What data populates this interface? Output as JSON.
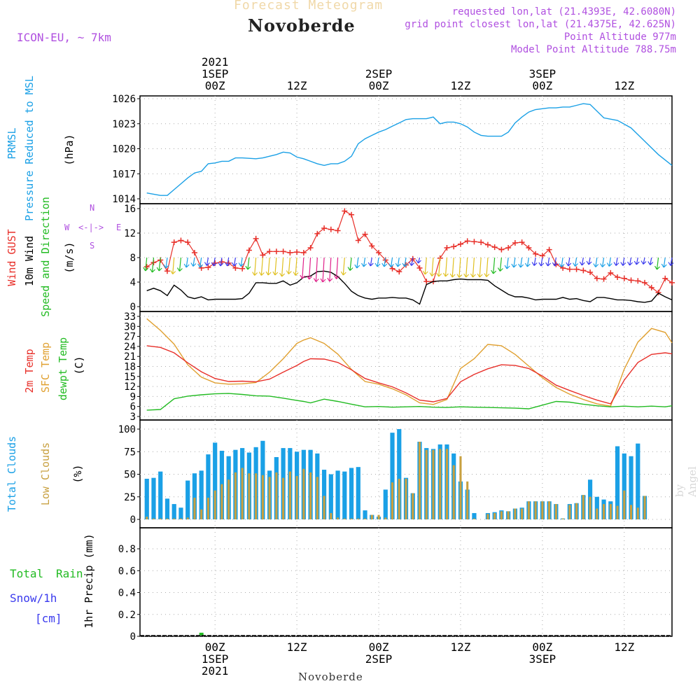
{
  "header": {
    "subtitle": "Forecast Meteogram",
    "title": "Novoberde",
    "model": "ICON-EU, ~ 7km",
    "req": "requested lon,lat (21.4393E, 42.6080N)",
    "grid": "grid point closest lon,lat (21.4375E, 42.625N)",
    "alt": "Point Altitude 977m",
    "model_alt": "Model Point Altitude 788.75m",
    "watermark": "by Angel",
    "footer": "Novoberde"
  },
  "colors": {
    "pressure": "#1aa0e6",
    "gust": "#e8302a",
    "wind": "#000000",
    "dir_label": "#22bb22",
    "t2m": "#e8302a",
    "sfc": "#e0a030",
    "dew": "#22bb22",
    "total_clouds": "#1aa0e6",
    "low_clouds": "#c8a040",
    "snow": "#3a3aee",
    "compass": "#b050e0"
  },
  "compass": {
    "west": "W",
    "east": "E",
    "north": "N",
    "south": "S",
    "arrow": "<-|->"
  },
  "chart_data": [
    {
      "type": "line",
      "panel": "pressure",
      "ylabels": [
        "PRMSL",
        "Pressure Reduced to MSL",
        "(hPa)"
      ],
      "y_ticks": [
        "1026",
        "1023",
        "1020",
        "1017",
        "1014"
      ],
      "ylim": [
        1013.5,
        1026.5
      ],
      "x_hours": [
        0,
        2,
        3,
        4,
        6,
        7,
        8,
        9,
        10,
        11,
        12,
        13,
        14,
        16,
        17,
        18,
        19,
        20,
        21,
        22,
        23,
        24,
        25,
        26,
        27,
        28,
        29,
        30,
        31,
        32,
        33,
        34,
        35,
        36,
        37,
        38,
        39,
        40,
        41,
        42,
        43,
        44,
        45,
        46,
        47,
        48,
        49,
        50,
        51,
        52,
        53,
        54,
        55,
        56,
        57,
        58,
        59,
        60,
        61,
        62,
        63,
        64,
        65,
        67,
        69,
        71,
        73,
        75,
        77
      ],
      "series": [
        {
          "values": [
            1014.7,
            1014.4,
            1014.4,
            1015.1,
            1016.5,
            1017.1,
            1017.3,
            1018.2,
            1018.3,
            1018.5,
            1018.5,
            1018.9,
            1018.9,
            1018.8,
            1018.9,
            1019.1,
            1019.3,
            1019.6,
            1019.5,
            1019.0,
            1018.8,
            1018.5,
            1018.2,
            1018.0,
            1018.2,
            1018.2,
            1018.5,
            1019.1,
            1020.6,
            1021.2,
            1021.6,
            1022.0,
            1022.3,
            1022.7,
            1023.1,
            1023.5,
            1023.6,
            1023.6,
            1023.6,
            1023.8,
            1023.0,
            1023.2,
            1023.2,
            1023.0,
            1022.6,
            1022.0,
            1021.6,
            1021.5,
            1021.5,
            1021.5,
            1022.0,
            1023.1,
            1023.8,
            1024.4,
            1024.7,
            1024.8,
            1024.9,
            1024.9,
            1025.0,
            1025.0,
            1025.2,
            1025.4,
            1025.3,
            1023.7,
            1023.4,
            1022.5,
            1020.9,
            1019.3,
            1018.0
          ]
        }
      ]
    },
    {
      "type": "line",
      "panel": "wind",
      "ylabels": [
        "Wind GUST",
        "10m Wind",
        "Speed and Direction",
        "(m/s)"
      ],
      "y_ticks": [
        "16",
        "12",
        "8",
        "4",
        "0"
      ],
      "ylim": [
        0,
        16.5
      ],
      "x_hours": [
        0,
        1,
        2,
        3,
        4,
        5,
        6,
        7,
        8,
        9,
        10,
        11,
        12,
        13,
        14,
        15,
        16,
        17,
        18,
        19,
        20,
        21,
        22,
        23,
        24,
        25,
        26,
        27,
        28,
        29,
        30,
        31,
        32,
        33,
        34,
        35,
        36,
        37,
        38,
        39,
        40,
        41,
        42,
        43,
        44,
        45,
        46,
        47,
        48,
        49,
        50,
        51,
        52,
        53,
        54,
        55,
        56,
        57,
        58,
        59,
        60,
        61,
        62,
        63,
        64,
        65,
        66,
        67,
        68,
        69,
        70,
        71,
        72,
        73,
        74,
        75,
        76,
        77
      ],
      "series": [
        {
          "name": "Wind GUST",
          "values": [
            6.5,
            7.2,
            7.6,
            5.8,
            10.5,
            10.8,
            10.5,
            8.8,
            6.3,
            6.4,
            7.1,
            7.3,
            7.1,
            6.3,
            6.2,
            9.2,
            11.1,
            8.4,
            9.0,
            9.0,
            9.0,
            8.8,
            8.9,
            8.8,
            9.6,
            11.9,
            12.8,
            12.6,
            12.4,
            15.6,
            15.0,
            10.8,
            11.8,
            9.9,
            8.8,
            7.6,
            6.2,
            5.7,
            6.8,
            7.8,
            6.3,
            4.1,
            4.1,
            7.9,
            9.6,
            9.8,
            10.2,
            10.7,
            10.6,
            10.5,
            10.1,
            9.7,
            9.3,
            9.6,
            10.4,
            10.5,
            9.6,
            8.6,
            8.3,
            9.3,
            6.9,
            6.3,
            6.1,
            6.1,
            5.9,
            5.6,
            4.6,
            4.5,
            5.5,
            4.8,
            4.6,
            4.3,
            4.2,
            3.9,
            3.1,
            2.3,
            4.6,
            3.9
          ]
        },
        {
          "name": "10m Wind",
          "values": [
            2.6,
            3.0,
            2.6,
            1.8,
            3.5,
            2.7,
            1.6,
            1.3,
            1.6,
            1.1,
            1.2,
            1.2,
            1.2,
            1.2,
            1.3,
            2.2,
            3.9,
            3.9,
            3.8,
            3.8,
            4.2,
            3.5,
            3.9,
            4.8,
            5.0,
            5.7,
            5.8,
            5.6,
            4.9,
            3.8,
            2.5,
            1.8,
            1.4,
            1.2,
            1.4,
            1.4,
            1.5,
            1.4,
            1.4,
            1.1,
            0.4,
            3.6,
            4.1,
            4.2,
            4.2,
            4.4,
            4.5,
            4.4,
            4.4,
            4.4,
            4.3,
            3.4,
            2.7,
            2.0,
            1.6,
            1.6,
            1.4,
            1.1,
            1.2,
            1.2,
            1.2,
            1.5,
            1.2,
            1.3,
            1.0,
            0.8,
            1.5,
            1.5,
            1.3,
            1.1,
            1.1,
            1.0,
            0.8,
            0.7,
            0.9,
            2.2,
            1.6,
            1.1
          ]
        }
      ]
    },
    {
      "type": "line",
      "panel": "temperature",
      "ylabels": [
        "2m Temp",
        "SFC Temp",
        "dewpt Temp",
        "(C)"
      ],
      "y_ticks": [
        "33",
        "30",
        "27",
        "24",
        "21",
        "18",
        "15",
        "12",
        "9",
        "6",
        "3"
      ],
      "ylim": [
        3,
        33
      ],
      "x_hours": [
        0,
        2,
        4,
        6,
        8,
        10,
        12,
        14,
        16,
        18,
        20,
        22,
        23,
        24,
        26,
        28,
        30,
        32,
        34,
        36,
        38,
        40,
        42,
        44,
        46,
        48,
        50,
        52,
        54,
        56,
        58,
        60,
        62,
        64,
        66,
        68,
        70,
        72,
        74,
        76,
        77
      ],
      "series": [
        {
          "name": "2m Temp",
          "values": [
            24.2,
            23.7,
            22.1,
            19.1,
            16.4,
            14.4,
            13.5,
            13.6,
            13.4,
            14.2,
            16.3,
            18.3,
            19.5,
            20.3,
            20.2,
            19.2,
            17.0,
            14.4,
            13.1,
            11.9,
            10.1,
            7.9,
            7.4,
            8.4,
            13.4,
            15.6,
            17.3,
            18.5,
            18.3,
            17.4,
            15.1,
            12.4,
            10.8,
            9.3,
            7.9,
            6.8,
            13.9,
            19.2,
            21.6,
            22.1,
            21.8
          ]
        },
        {
          "name": "SFC Temp",
          "values": [
            32.3,
            28.8,
            24.7,
            18.5,
            14.8,
            13.1,
            12.7,
            12.8,
            13.2,
            16.3,
            20.3,
            24.9,
            25.9,
            26.6,
            24.9,
            21.7,
            17.1,
            13.5,
            12.7,
            11.3,
            9.5,
            7.1,
            6.6,
            8.1,
            17.4,
            20.3,
            24.6,
            24.2,
            21.6,
            18.1,
            14.6,
            11.7,
            9.7,
            8.1,
            6.8,
            6.1,
            17.2,
            25.3,
            29.4,
            28.2,
            25.1
          ]
        },
        {
          "name": "dewpt Temp",
          "values": [
            4.9,
            5.1,
            8.3,
            9.1,
            9.5,
            9.8,
            9.9,
            9.6,
            9.2,
            9.1,
            8.5,
            7.8,
            7.5,
            7.1,
            8.2,
            7.5,
            6.7,
            5.9,
            6.0,
            5.8,
            5.9,
            6.0,
            5.8,
            5.7,
            5.9,
            5.8,
            5.7,
            5.6,
            5.5,
            5.3,
            6.4,
            7.5,
            7.3,
            6.7,
            6.2,
            5.9,
            6.1,
            5.9,
            6.1,
            5.9,
            6.2
          ]
        }
      ]
    },
    {
      "type": "bar",
      "panel": "clouds",
      "ylabels": [
        "Total Clouds",
        "Low Clouds",
        "(%)"
      ],
      "y_ticks": [
        "100",
        "75",
        "50",
        "25",
        "0"
      ],
      "ylim": [
        0,
        100
      ],
      "x_hours": [
        0,
        1,
        2,
        3,
        4,
        5,
        6,
        7,
        8,
        9,
        10,
        11,
        12,
        13,
        14,
        15,
        16,
        17,
        18,
        19,
        20,
        21,
        22,
        23,
        24,
        25,
        26,
        27,
        28,
        29,
        30,
        31,
        32,
        33,
        34,
        35,
        36,
        37,
        38,
        39,
        40,
        41,
        42,
        43,
        44,
        45,
        46,
        47,
        48,
        49,
        50,
        51,
        52,
        53,
        54,
        55,
        56,
        57,
        58,
        59,
        60,
        61,
        62,
        63,
        64,
        65,
        66,
        67,
        68,
        69,
        70,
        71,
        72,
        73,
        74,
        75,
        76,
        77
      ],
      "series": [
        {
          "name": "Total Clouds",
          "values": [
            45,
            46,
            53,
            23,
            17,
            13,
            43,
            51,
            54,
            72,
            85,
            76,
            70,
            77,
            79,
            74,
            80,
            87,
            54,
            69,
            79,
            79,
            75,
            77,
            77,
            73,
            55,
            50,
            54,
            53,
            57,
            58,
            10,
            5,
            3,
            33,
            96,
            100,
            46,
            29,
            86,
            79,
            78,
            83,
            83,
            73,
            42,
            33,
            7,
            0,
            7,
            8,
            10,
            9,
            12,
            13,
            20,
            20,
            20,
            20,
            17,
            1,
            17,
            18,
            27,
            44,
            25,
            22,
            20,
            81,
            73,
            70,
            84,
            26,
            0,
            0,
            0,
            0
          ]
        },
        {
          "name": "Low Clouds",
          "values": [
            3,
            1,
            1,
            1,
            1,
            1,
            2,
            24,
            11,
            24,
            32,
            39,
            44,
            52,
            57,
            51,
            51,
            49,
            47,
            52,
            46,
            53,
            48,
            56,
            52,
            47,
            26,
            7,
            2,
            1,
            1,
            1,
            1,
            5,
            5,
            2,
            41,
            45,
            45,
            29,
            86,
            77,
            77,
            78,
            78,
            60,
            70,
            42,
            1,
            0,
            6,
            7,
            9,
            9,
            12,
            12,
            20,
            20,
            20,
            20,
            17,
            1,
            16,
            18,
            27,
            25,
            12,
            17,
            17,
            15,
            32,
            16,
            13,
            26,
            0,
            0,
            0,
            0
          ]
        }
      ]
    },
    {
      "type": "bar",
      "panel": "precip",
      "ylabels": [
        "1hr Precip (mm)"
      ],
      "legend": [
        "Total",
        "Rain",
        "Snow/1h",
        "[cm]"
      ],
      "y_ticks": [
        "0.8",
        "0.6",
        "0.4",
        "0.2",
        "0"
      ],
      "ylim": [
        0,
        1.0
      ],
      "x_hours": [
        8
      ],
      "series": [
        {
          "name": "Rain",
          "values": [
            0.02
          ]
        }
      ]
    }
  ],
  "time_axis": {
    "top": [
      {
        "h": 10,
        "lines": [
          "2021",
          "1SEP",
          "00Z"
        ]
      },
      {
        "h": 22,
        "lines": [
          "12Z"
        ]
      },
      {
        "h": 34,
        "lines": [
          "2SEP",
          "00Z"
        ]
      },
      {
        "h": 46,
        "lines": [
          "12Z"
        ]
      },
      {
        "h": 58,
        "lines": [
          "3SEP",
          "00Z"
        ]
      },
      {
        "h": 70,
        "lines": [
          "12Z"
        ]
      }
    ],
    "bottom": [
      {
        "h": 10,
        "lines": [
          "00Z",
          "1SEP",
          "2021"
        ]
      },
      {
        "h": 22,
        "lines": [
          "12Z"
        ]
      },
      {
        "h": 34,
        "lines": [
          "00Z",
          "2SEP"
        ]
      },
      {
        "h": 46,
        "lines": [
          "12Z"
        ]
      },
      {
        "h": 58,
        "lines": [
          "00Z",
          "3SEP"
        ]
      },
      {
        "h": 70,
        "lines": [
          "12Z"
        ]
      }
    ]
  }
}
